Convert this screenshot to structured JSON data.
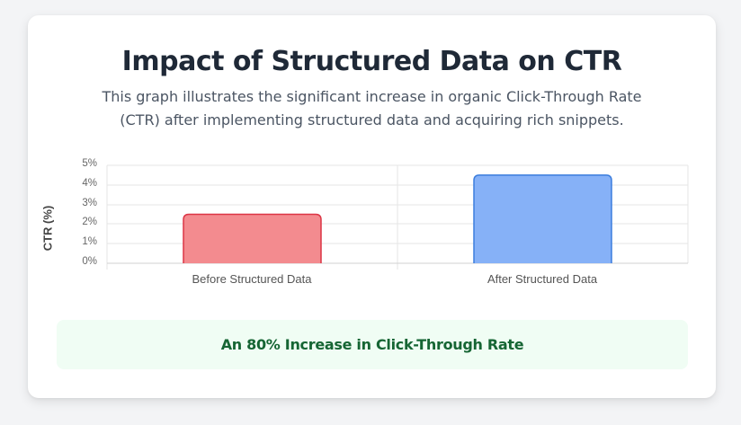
{
  "header": {
    "title": "Impact of Structured Data on CTR",
    "subtitle": "This graph illustrates the significant increase in organic Click-Through Rate (CTR) after implementing structured data and acquiring rich snippets."
  },
  "chart": {
    "ylabel": "CTR (%)",
    "yticks": [
      "5%",
      "4%",
      "3%",
      "2%",
      "1%",
      "0%"
    ],
    "xticks": [
      "Before Structured Data",
      "After Structured Data"
    ]
  },
  "banner": {
    "text": "An 80% Increase in Click-Through Rate"
  },
  "colors": {
    "before_fill": "#f38b8f",
    "before_border": "#dc3545",
    "after_fill": "#86b1f7",
    "after_border": "#3b7ddd",
    "banner_bg": "#f0fdf4",
    "banner_text": "#166534"
  },
  "chart_data": {
    "type": "bar",
    "title": "Impact of Structured Data on CTR",
    "categories": [
      "Before Structured Data",
      "After Structured Data"
    ],
    "values": [
      2.5,
      4.5
    ],
    "xlabel": "",
    "ylabel": "CTR (%)",
    "ylim": [
      0,
      5
    ],
    "yticks": [
      0,
      1,
      2,
      3,
      4,
      5
    ],
    "grid": true,
    "legend": null
  }
}
